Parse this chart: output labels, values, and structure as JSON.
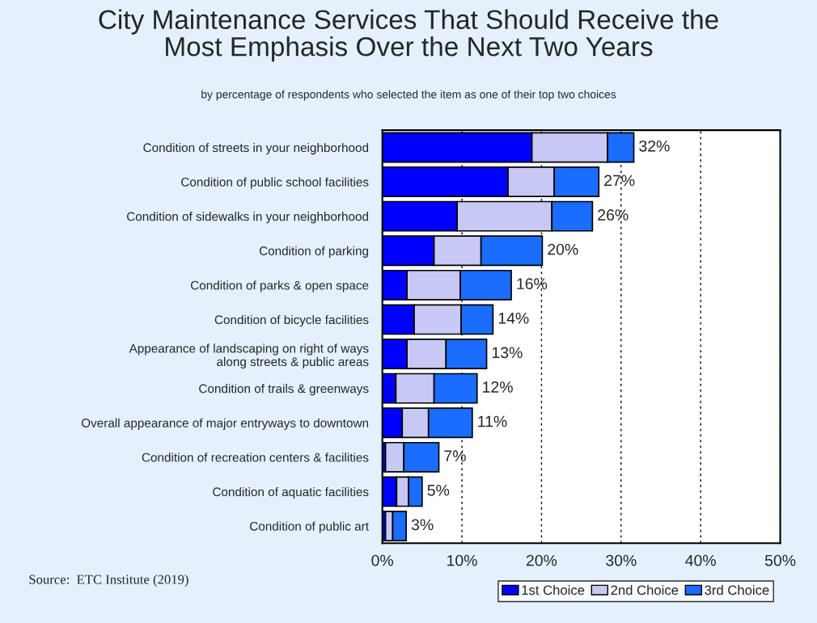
{
  "chart_data": {
    "type": "bar",
    "orientation": "horizontal",
    "stacked": true,
    "title": "City Maintenance Services That Should Receive the\nMost Emphasis Over the Next Two Years",
    "subtitle": "by percentage of respondents who selected the item as one of their top two choices",
    "categories": [
      "Condition of streets in your neighborhood",
      "Condition of public school facilities",
      "Condition of sidewalks in your neighborhood",
      "Condition of parking",
      "Condition of parks & open space",
      "Condition of bicycle facilities",
      "Appearance of landscaping on right of ways\nalong streets & public areas",
      "Condition of trails & greenways",
      "Overall appearance of major entryways to downtown",
      "Condition of recreation centers & facilities",
      "Condition of aquatic facilities",
      "Condition of public art"
    ],
    "series": [
      {
        "name": "1st Choice",
        "color": "#0000ff",
        "values": [
          18.8,
          15.8,
          9.4,
          6.5,
          3.1,
          4.0,
          3.1,
          1.7,
          2.5,
          0.4,
          1.8,
          0.4
        ]
      },
      {
        "name": "2nd Choice",
        "color": "#c8c8f4",
        "values": [
          9.5,
          5.8,
          11.9,
          5.9,
          6.7,
          5.9,
          4.9,
          4.8,
          3.3,
          2.3,
          1.5,
          0.9
        ]
      },
      {
        "name": "3rd Choice",
        "color": "#1a6dff",
        "values": [
          3.3,
          5.6,
          5.1,
          7.7,
          6.4,
          4.0,
          5.1,
          5.4,
          5.5,
          4.4,
          1.7,
          1.7
        ]
      }
    ],
    "totals": [
      "32%",
      "27%",
      "26%",
      "20%",
      "16%",
      "14%",
      "13%",
      "12%",
      "11%",
      "7%",
      "5%",
      "3%"
    ],
    "xlim": [
      0,
      50
    ],
    "xticks": [
      {
        "value": 0,
        "label": "0%"
      },
      {
        "value": 10,
        "label": "10%"
      },
      {
        "value": 20,
        "label": "20%"
      },
      {
        "value": 30,
        "label": "30%"
      },
      {
        "value": 40,
        "label": "40%"
      },
      {
        "value": 50,
        "label": "50%"
      }
    ],
    "grid": "x",
    "legend": "bottom right",
    "annotations": [
      "Source:  ETC Institute (2019)"
    ]
  }
}
